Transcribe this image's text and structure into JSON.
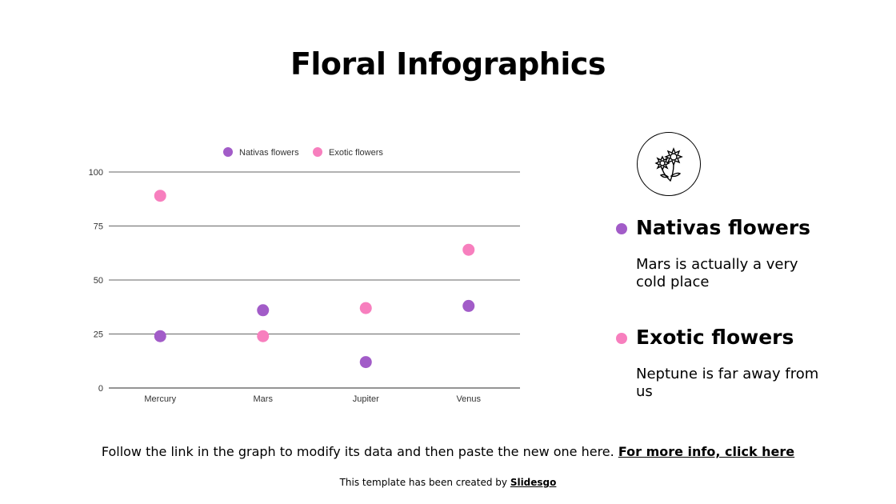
{
  "title": "Floral Infographics",
  "chart_data": {
    "type": "scatter",
    "categories": [
      "Mercury",
      "Mars",
      "Jupiter",
      "Venus"
    ],
    "series": [
      {
        "name": "Nativas flowers",
        "color": "#a25cc8",
        "values": [
          24,
          36,
          12,
          38
        ]
      },
      {
        "name": "Exotic flowers",
        "color": "#f77fbe",
        "values": [
          89,
          24,
          37,
          64
        ]
      }
    ],
    "ylim": [
      0,
      100
    ],
    "yticks": [
      "0",
      "25",
      "50",
      "75",
      "100"
    ],
    "legend_position": "top",
    "grid": true
  },
  "legend": [
    {
      "heading": "Nativas flowers",
      "description": "Mars is actually a very cold place",
      "color": "#a25cc8"
    },
    {
      "heading": "Exotic flowers",
      "description": "Neptune is far away from us",
      "color": "#f77fbe"
    }
  ],
  "icon": "flower-icon",
  "footer": {
    "text": "Follow the link in the graph to modify its data and then paste the new one here.",
    "link": "For more info, click here"
  },
  "credit": {
    "text": "This template has been created by",
    "brand": "Slidesgo"
  }
}
